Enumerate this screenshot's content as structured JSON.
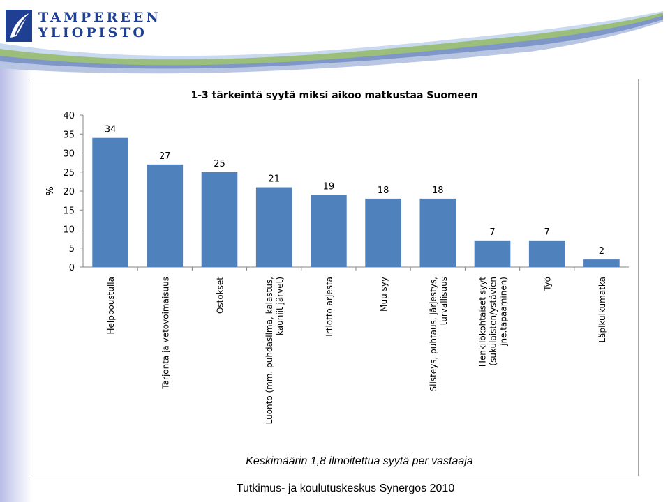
{
  "header": {
    "logo_line1": "TAMPEREEN",
    "logo_line2": "YLIOPISTO",
    "logo_icon": "leaf-logo-icon"
  },
  "chart_data": {
    "type": "bar",
    "title": "1-3 tärkeintä syytä miksi aikoo matkustaa Suomeen",
    "ylabel": "%",
    "xlabel": "",
    "ylim": [
      0,
      40
    ],
    "yticks": [
      0,
      5,
      10,
      15,
      20,
      25,
      30,
      35,
      40
    ],
    "categories": [
      [
        "Helppoustulla"
      ],
      [
        "Tarjonta ja vetovoimaisuus"
      ],
      [
        "Ostokset"
      ],
      [
        "Luonto (mm. puhdasilma, kalastus,",
        "kauniit järvet)"
      ],
      [
        "Irtiotto arjesta"
      ],
      [
        "Muu syy"
      ],
      [
        "Siisteys, puhtaus, järjestys,",
        "turvallisuus"
      ],
      [
        "Henkilökohtaiset syyt",
        "(sukulaisten/ystävien",
        "jne.tapaaminen)"
      ],
      [
        "Työ"
      ],
      [
        "Läpikulkumatka"
      ]
    ],
    "values": [
      34,
      27,
      25,
      21,
      19,
      18,
      18,
      7,
      7,
      2
    ],
    "bar_color": "#4f81bd",
    "grid": false,
    "legend": "none",
    "annotation": "Keskimäärin 1,8 ilmoitettua syytä per vastaaja"
  },
  "footer": {
    "text": "Tutkimus- ja koulutuskeskus Synergos 2010"
  },
  "colors": {
    "header_blue": "#1f3f93",
    "swoosh_green": "#9bbf7a",
    "swoosh_blue": "#7f96c8",
    "gradient_lavender": "#b9bde6"
  }
}
